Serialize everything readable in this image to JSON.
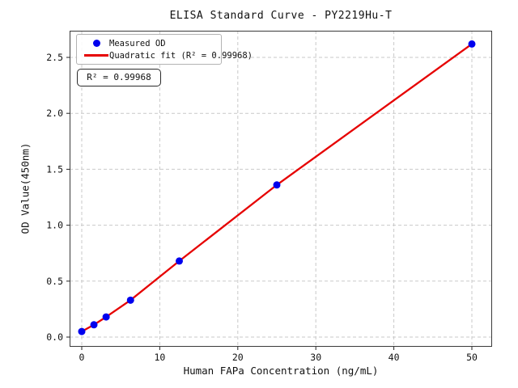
{
  "chart_data": {
    "type": "scatter",
    "title": "ELISA Standard Curve - PY2219Hu-T",
    "xlabel": "Human FAPa Concentration (ng/mL)",
    "ylabel": "OD Value(450nm)",
    "series": [
      {
        "name": "Measured OD",
        "type": "scatter",
        "color": "#0000ee",
        "x": [
          0,
          1.56,
          3.125,
          6.25,
          12.5,
          25,
          50
        ],
        "y": [
          0.05,
          0.11,
          0.18,
          0.33,
          0.68,
          1.36,
          2.62
        ]
      },
      {
        "name": "Quadratic fit (R² = 0.99968)",
        "type": "line",
        "color": "#e60000",
        "x": [
          0,
          1.56,
          3.125,
          6.25,
          12.5,
          25,
          50
        ],
        "y": [
          0.05,
          0.11,
          0.18,
          0.33,
          0.68,
          1.36,
          2.62
        ]
      }
    ],
    "r_squared": "0.99968",
    "annotation": "R² = 0.99968",
    "legend_entries": [
      "Measured OD",
      "Quadratic fit (R² = 0.99968)"
    ],
    "legend_position": "upper left",
    "xticks": [
      0,
      10,
      20,
      30,
      40,
      50
    ],
    "yticks": [
      0,
      0.5,
      1.0,
      1.5,
      2.0,
      2.5
    ],
    "xlim": [
      -1.6,
      52.6
    ],
    "ylim": [
      -0.09,
      2.74
    ],
    "grid": true,
    "grid_style": "dashed",
    "colors": {
      "points": "#0000ee",
      "fit_line": "#e60000",
      "grid": "#c9c9c9",
      "frame": "#3a3a3a",
      "tick": "#222222",
      "background": "#ffffff"
    }
  }
}
